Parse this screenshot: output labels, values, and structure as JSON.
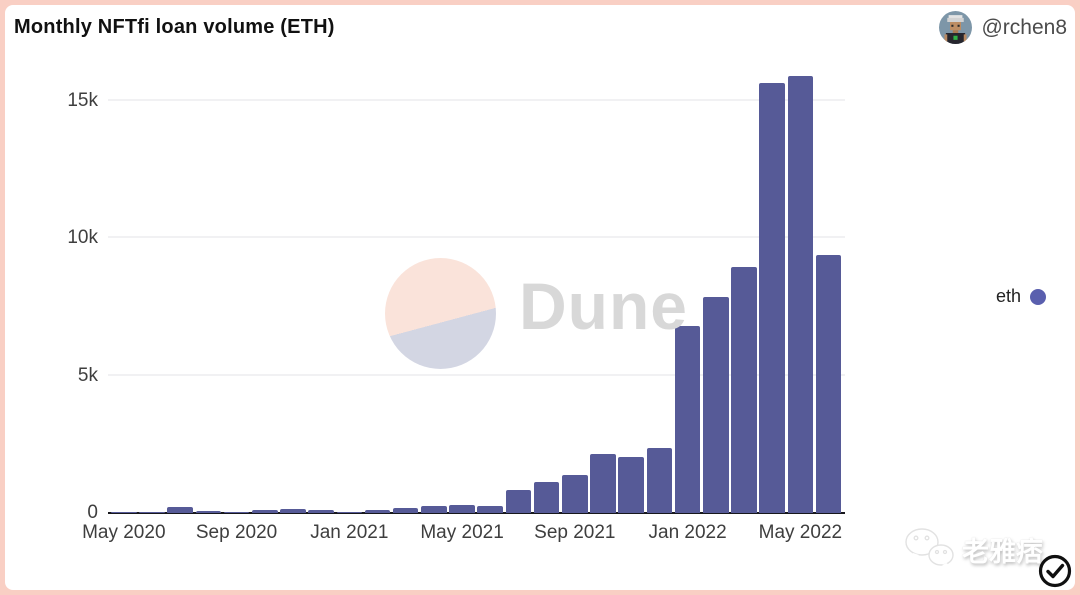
{
  "header": {
    "title": "Monthly NFTfi loan volume (ETH)",
    "author_handle": "@rchen8"
  },
  "legend": {
    "label": "eth"
  },
  "watermarks": {
    "dune_text": "Dune",
    "wechat_label": "老雅痞"
  },
  "colors": {
    "bar": "#565a97",
    "legend_dot": "#5a5fae",
    "frame": "#f9cfc4",
    "gridline": "#f1f1f3",
    "axis_line": "#17171c",
    "axis_text": "#3e3e3e",
    "title_text": "#111111",
    "dune_text": "#d8d8d8"
  },
  "chart_data": {
    "type": "bar",
    "title": "Monthly NFTfi loan volume (ETH)",
    "xlabel": "",
    "ylabel": "",
    "x": [
      "May 2020",
      "Jun 2020",
      "Jul 2020",
      "Aug 2020",
      "Sep 2020",
      "Oct 2020",
      "Nov 2020",
      "Dec 2020",
      "Jan 2021",
      "Feb 2021",
      "Mar 2021",
      "Apr 2021",
      "May 2021",
      "Jun 2021",
      "Jul 2021",
      "Aug 2021",
      "Sep 2021",
      "Oct 2021",
      "Nov 2021",
      "Dec 2021",
      "Jan 2022",
      "Feb 2022",
      "Mar 2022",
      "Apr 2022",
      "May 2022",
      "Jun 2022"
    ],
    "series": [
      {
        "name": "eth",
        "values": [
          15,
          55,
          220,
          90,
          25,
          100,
          145,
          110,
          25,
          120,
          200,
          270,
          290,
          270,
          820,
          1130,
          1390,
          2150,
          2050,
          2350,
          6800,
          7850,
          8950,
          15650,
          15900,
          9400
        ]
      }
    ],
    "x_ticks": [
      {
        "index": 0,
        "label": "May 2020"
      },
      {
        "index": 4,
        "label": "Sep 2020"
      },
      {
        "index": 8,
        "label": "Jan 2021"
      },
      {
        "index": 12,
        "label": "May 2021"
      },
      {
        "index": 16,
        "label": "Sep 2021"
      },
      {
        "index": 20,
        "label": "Jan 2022"
      },
      {
        "index": 24,
        "label": "May 2022"
      }
    ],
    "y_ticks": [
      {
        "value": 0,
        "label": "0"
      },
      {
        "value": 5000,
        "label": "5k"
      },
      {
        "value": 10000,
        "label": "10k"
      },
      {
        "value": 15000,
        "label": "15k"
      }
    ],
    "ylim": [
      0,
      16300
    ],
    "grid": "horizontal",
    "legend_position": "right"
  }
}
